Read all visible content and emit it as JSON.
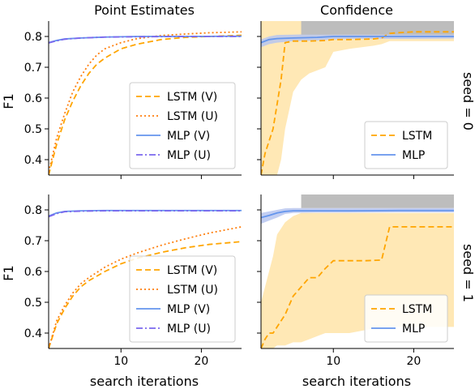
{
  "col_titles": [
    "Point Estimates",
    "Confidence"
  ],
  "row_labels": [
    "seed = 0",
    "seed = 1"
  ],
  "ylabel": "F1",
  "xlabel": "search iterations",
  "legend_left": [
    "LSTM (V)",
    "LSTM (U)",
    "MLP (V)",
    "MLP (U)"
  ],
  "legend_right": [
    "LSTM",
    "MLP"
  ],
  "colors": {
    "lstm": "#FFA500",
    "lstm_u": "#FF7F0E",
    "mlp": "#6495ED",
    "mlp_u": "#7B68EE",
    "lstm_fill": "#FFE4A8",
    "mlp_fill": "#B7C6F0",
    "overlap": "#BDBDBD"
  },
  "chart_data": [
    {
      "type": "line",
      "panel": "seed0-point",
      "title": "Point Estimates",
      "xlabel": "",
      "ylabel": "F1",
      "xlim": [
        1,
        25
      ],
      "ylim": [
        0.35,
        0.85
      ],
      "yticks": [
        0.4,
        0.5,
        0.6,
        0.7,
        0.8
      ],
      "xticks": [
        10,
        20
      ],
      "legend": "lower-right",
      "series": [
        {
          "name": "LSTM (V)",
          "x": [
            1,
            2,
            3,
            4,
            5,
            6,
            7,
            8,
            10,
            12,
            15,
            18,
            21,
            25
          ],
          "y": [
            0.35,
            0.45,
            0.53,
            0.59,
            0.64,
            0.68,
            0.71,
            0.73,
            0.76,
            0.775,
            0.79,
            0.797,
            0.8,
            0.804
          ]
        },
        {
          "name": "LSTM (U)",
          "x": [
            1,
            2,
            3,
            4,
            5,
            6,
            7,
            8,
            10,
            12,
            15,
            18,
            21,
            25
          ],
          "y": [
            0.36,
            0.47,
            0.55,
            0.62,
            0.67,
            0.71,
            0.74,
            0.76,
            0.78,
            0.793,
            0.803,
            0.808,
            0.812,
            0.815
          ]
        },
        {
          "name": "MLP (V)",
          "x": [
            1,
            2,
            3,
            5,
            8,
            12,
            18,
            25
          ],
          "y": [
            0.78,
            0.787,
            0.792,
            0.795,
            0.798,
            0.8,
            0.8,
            0.801
          ]
        },
        {
          "name": "MLP (U)",
          "x": [
            1,
            2,
            3,
            5,
            8,
            12,
            18,
            25
          ],
          "y": [
            0.779,
            0.786,
            0.791,
            0.795,
            0.798,
            0.799,
            0.8,
            0.8
          ]
        }
      ]
    },
    {
      "type": "line",
      "panel": "seed0-conf",
      "title": "Confidence",
      "xlim": [
        1,
        25
      ],
      "ylim": [
        0.35,
        0.85
      ],
      "xticks": [
        10,
        20
      ],
      "legend": "lower-right",
      "series": [
        {
          "name": "LSTM",
          "x": [
            1,
            1.5,
            2,
            2.5,
            3,
            3.5,
            4,
            5,
            6,
            7,
            9,
            10,
            12,
            15,
            16,
            17,
            18,
            20,
            22,
            25
          ],
          "y": [
            0.35,
            0.42,
            0.46,
            0.5,
            0.58,
            0.66,
            0.78,
            0.785,
            0.785,
            0.785,
            0.787,
            0.79,
            0.79,
            0.792,
            0.795,
            0.81,
            0.812,
            0.815,
            0.815,
            0.815
          ],
          "lower": [
            0.35,
            0.35,
            0.35,
            0.35,
            0.35,
            0.4,
            0.5,
            0.62,
            0.66,
            0.68,
            0.7,
            0.75,
            0.76,
            0.77,
            0.775,
            0.785,
            0.785,
            0.785,
            0.785,
            0.785
          ],
          "upper": [
            0.85,
            0.85,
            0.85,
            0.85,
            0.85,
            0.85,
            0.85,
            0.85,
            0.85,
            0.85,
            0.85,
            0.85,
            0.85,
            0.85,
            0.85,
            0.85,
            0.85,
            0.85,
            0.85,
            0.85
          ]
        },
        {
          "name": "MLP",
          "x": [
            1,
            2,
            3,
            5,
            8,
            10,
            12,
            18,
            25
          ],
          "y": [
            0.78,
            0.79,
            0.793,
            0.795,
            0.797,
            0.8,
            0.8,
            0.8,
            0.8
          ],
          "lower": [
            0.765,
            0.775,
            0.78,
            0.785,
            0.787,
            0.79,
            0.792,
            0.792,
            0.793
          ],
          "upper": [
            0.79,
            0.8,
            0.805,
            0.806,
            0.808,
            0.808,
            0.808,
            0.808,
            0.808
          ]
        }
      ]
    },
    {
      "type": "line",
      "panel": "seed1-point",
      "title": "",
      "xlabel": "search iterations",
      "ylabel": "F1",
      "xlim": [
        1,
        25
      ],
      "ylim": [
        0.35,
        0.85
      ],
      "yticks": [
        0.4,
        0.5,
        0.6,
        0.7,
        0.8
      ],
      "xticks": [
        10,
        20
      ],
      "legend": "lower-right",
      "series": [
        {
          "name": "LSTM (V)",
          "x": [
            1,
            2,
            3,
            4,
            5,
            6,
            8,
            10,
            12,
            15,
            18,
            21,
            25
          ],
          "y": [
            0.35,
            0.43,
            0.48,
            0.52,
            0.55,
            0.57,
            0.6,
            0.625,
            0.643,
            0.662,
            0.677,
            0.688,
            0.697
          ]
        },
        {
          "name": "LSTM (U)",
          "x": [
            1,
            2,
            3,
            4,
            5,
            6,
            8,
            10,
            12,
            15,
            18,
            21,
            25
          ],
          "y": [
            0.35,
            0.44,
            0.49,
            0.53,
            0.56,
            0.58,
            0.614,
            0.64,
            0.66,
            0.685,
            0.706,
            0.725,
            0.745
          ]
        },
        {
          "name": "MLP (V)",
          "x": [
            1,
            2,
            3,
            5,
            8,
            12,
            18,
            25
          ],
          "y": [
            0.78,
            0.79,
            0.795,
            0.797,
            0.798,
            0.798,
            0.798,
            0.798
          ]
        },
        {
          "name": "MLP (U)",
          "x": [
            1,
            2,
            3,
            5,
            8,
            12,
            18,
            25
          ],
          "y": [
            0.778,
            0.788,
            0.794,
            0.796,
            0.797,
            0.797,
            0.797,
            0.797
          ]
        }
      ]
    },
    {
      "type": "line",
      "panel": "seed1-conf",
      "title": "",
      "xlabel": "search iterations",
      "xlim": [
        1,
        25
      ],
      "ylim": [
        0.35,
        0.85
      ],
      "xticks": [
        10,
        20
      ],
      "legend": "lower-right",
      "series": [
        {
          "name": "LSTM",
          "x": [
            1,
            1.5,
            2,
            2.5,
            3,
            4,
            5,
            6,
            7,
            8,
            9,
            10,
            12,
            14,
            16,
            17,
            18,
            20,
            25
          ],
          "y": [
            0.35,
            0.38,
            0.4,
            0.4,
            0.42,
            0.46,
            0.52,
            0.55,
            0.58,
            0.58,
            0.61,
            0.635,
            0.635,
            0.635,
            0.637,
            0.745,
            0.745,
            0.745,
            0.745
          ],
          "lower": [
            0.35,
            0.35,
            0.35,
            0.35,
            0.36,
            0.36,
            0.37,
            0.37,
            0.38,
            0.39,
            0.4,
            0.4,
            0.4,
            0.41,
            0.42,
            0.42,
            0.42,
            0.42,
            0.42
          ],
          "upper": [
            0.5,
            0.55,
            0.6,
            0.65,
            0.72,
            0.76,
            0.78,
            0.79,
            0.79,
            0.79,
            0.79,
            0.79,
            0.79,
            0.79,
            0.79,
            0.79,
            0.79,
            0.79,
            0.79
          ]
        },
        {
          "name": "MLP",
          "x": [
            1,
            2,
            3,
            4,
            5,
            8,
            12,
            18,
            25
          ],
          "y": [
            0.775,
            0.782,
            0.79,
            0.795,
            0.797,
            0.797,
            0.797,
            0.798,
            0.798
          ],
          "lower": [
            0.755,
            0.765,
            0.775,
            0.787,
            0.79,
            0.791,
            0.791,
            0.792,
            0.792
          ],
          "upper": [
            0.79,
            0.795,
            0.8,
            0.805,
            0.806,
            0.806,
            0.806,
            0.806,
            0.806
          ]
        }
      ]
    }
  ]
}
